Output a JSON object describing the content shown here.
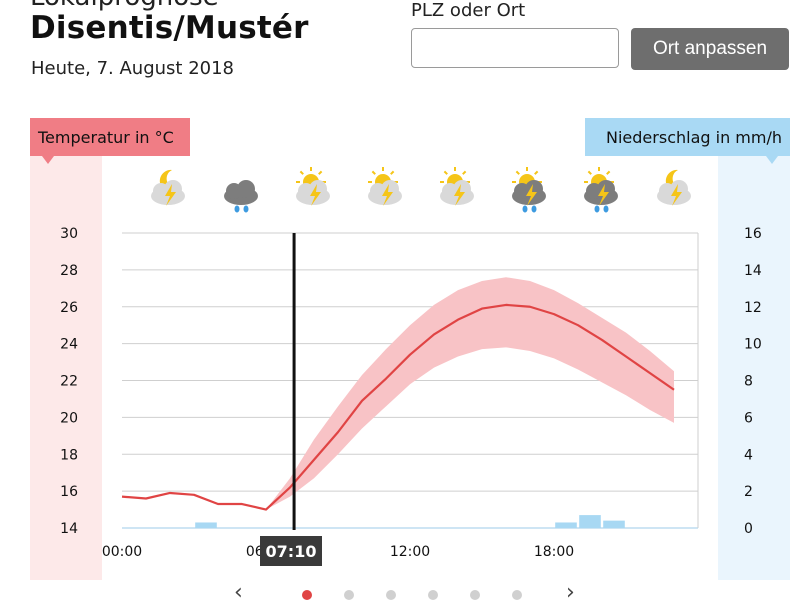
{
  "header": {
    "title_partial": "Lokalprognose",
    "location": "Disentis/Mustér",
    "date": "Heute, 7. August 2018"
  },
  "search": {
    "label": "PLZ oder Ort",
    "value": "",
    "button_label": "Ort anpassen"
  },
  "legend": {
    "temperature_label": "Temperatur in °C",
    "precipitation_label": "Niederschlag in mm/h"
  },
  "current_time": "07:10",
  "weather_icons": [
    "thunder-night-cloud-icon",
    "cloud-rain-icon",
    "thunder-sun-cloud-icon",
    "thunder-sun-cloud-icon",
    "thunder-sun-cloud-icon",
    "thunder-rain-sun-icon",
    "thunder-rain-sun-icon",
    "thunder-night-cloud-icon"
  ],
  "colors": {
    "temperature_line": "#e04444",
    "temperature_band": "#f8c3c6",
    "precip_bar": "#a8d8f3",
    "now_line": "#111111",
    "temp_tab": "#f07d85",
    "precip_tab": "#a9d9f4"
  },
  "chart_data": {
    "type": "line",
    "x_labels": [
      "00:00",
      "06:00",
      "12:00",
      "18:00"
    ],
    "x_hours": [
      0,
      1,
      2,
      3,
      4,
      5,
      6,
      7,
      8,
      9,
      10,
      11,
      12,
      13,
      14,
      15,
      16,
      17,
      18,
      19,
      20,
      21,
      22,
      23
    ],
    "temperature": [
      15.7,
      15.6,
      15.9,
      15.8,
      15.3,
      15.3,
      15.0,
      16.2,
      17.7,
      19.2,
      20.9,
      22.1,
      23.4,
      24.5,
      25.3,
      25.9,
      26.1,
      26.0,
      25.6,
      25.0,
      24.2,
      23.3,
      22.4,
      21.5
    ],
    "temperature_lower": [
      15.7,
      15.6,
      15.9,
      15.8,
      15.3,
      15.3,
      15.0,
      15.7,
      16.7,
      18.0,
      19.4,
      20.6,
      21.8,
      22.7,
      23.3,
      23.7,
      23.8,
      23.6,
      23.2,
      22.6,
      21.9,
      21.2,
      20.4,
      19.7
    ],
    "temperature_upper": [
      15.7,
      15.6,
      15.9,
      15.8,
      15.3,
      15.3,
      15.0,
      16.7,
      18.8,
      20.6,
      22.3,
      23.7,
      25.0,
      26.1,
      26.9,
      27.4,
      27.6,
      27.4,
      26.9,
      26.2,
      25.4,
      24.6,
      23.6,
      22.5
    ],
    "precipitation": [
      {
        "hour": 3,
        "value": 0.3
      },
      {
        "hour": 18,
        "value": 0.3
      },
      {
        "hour": 19,
        "value": 0.7
      },
      {
        "hour": 20,
        "value": 0.4
      }
    ],
    "y_left_ticks": [
      14,
      16,
      18,
      20,
      22,
      24,
      26,
      28,
      30
    ],
    "y_right_ticks": [
      0,
      2,
      4,
      6,
      8,
      10,
      12,
      14,
      16
    ],
    "y_left_range": [
      14,
      30
    ],
    "y_right_range": [
      0,
      16
    ],
    "x_range": [
      0,
      24
    ],
    "now_hour": 7.17,
    "grid": true
  },
  "pager": {
    "dots": 6,
    "active": 0
  }
}
